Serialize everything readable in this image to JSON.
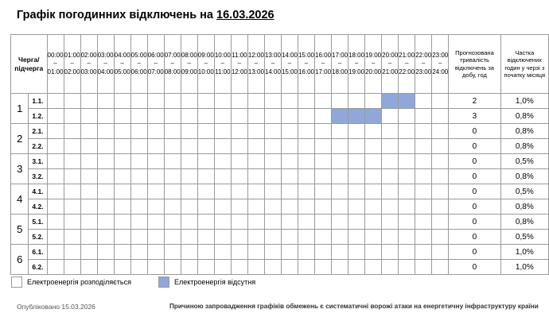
{
  "title_prefix": "Графік погодинних відключень на",
  "title_date": "16.03.2026",
  "header": {
    "queue_label": "Черга/ підчерга",
    "hours": [
      "00:00 – 01:00",
      "01:00 – 02:00",
      "02:00 – 03:00",
      "03:00 – 04:00",
      "04:00 – 05:00",
      "05:00 – 06:00",
      "06:00 – 07:00",
      "07:00 – 08:00",
      "08:00 – 09:00",
      "09:00 – 10:00",
      "10:00 – 11:00",
      "11:00 – 12:00",
      "12:00 – 13:00",
      "13:00 – 14:00",
      "14:00 – 15:00",
      "15:00 – 16:00",
      "16:00 – 17:00",
      "17:00 – 18:00",
      "18:00 – 19:00",
      "19:00 – 20:00",
      "20:00 – 21:00",
      "21:00 – 22:00",
      "22:00 – 23:00",
      "23:00 – 24:00"
    ],
    "duration_label": "Прогнозована тривалість відключень за добу, год",
    "share_label": "Частка відключених годин у черзі з початку місяця"
  },
  "queues": [
    {
      "label": "1",
      "subqueues": [
        {
          "label": "1.1.",
          "duration": "2",
          "share": "1,0%",
          "off_hours": [
            20,
            21
          ]
        },
        {
          "label": "1.2.",
          "duration": "3",
          "share": "0,8%",
          "off_hours": [
            17,
            18,
            19
          ]
        }
      ]
    },
    {
      "label": "2",
      "subqueues": [
        {
          "label": "2.1.",
          "duration": "0",
          "share": "0,8%",
          "off_hours": []
        },
        {
          "label": "2.2.",
          "duration": "0",
          "share": "0,8%",
          "off_hours": []
        }
      ]
    },
    {
      "label": "3",
      "subqueues": [
        {
          "label": "3.1.",
          "duration": "0",
          "share": "0,5%",
          "off_hours": []
        },
        {
          "label": "3.2.",
          "duration": "0",
          "share": "0,8%",
          "off_hours": []
        }
      ]
    },
    {
      "label": "4",
      "subqueues": [
        {
          "label": "4.1.",
          "duration": "0",
          "share": "0,5%",
          "off_hours": []
        },
        {
          "label": "4.2.",
          "duration": "0",
          "share": "0,8%",
          "off_hours": []
        }
      ]
    },
    {
      "label": "5",
      "subqueues": [
        {
          "label": "5.1.",
          "duration": "0",
          "share": "0,8%",
          "off_hours": []
        },
        {
          "label": "5.2.",
          "duration": "0",
          "share": "0,5%",
          "off_hours": []
        }
      ]
    },
    {
      "label": "6",
      "subqueues": [
        {
          "label": "6.1.",
          "duration": "0",
          "share": "1,0%",
          "off_hours": []
        },
        {
          "label": "6.2.",
          "duration": "0",
          "share": "1,0%",
          "off_hours": []
        }
      ]
    }
  ],
  "legend": {
    "on_label": "Електроенергія розподіляється",
    "off_label": "Електроенергія відсутня",
    "on_color": "#ffffff",
    "off_color": "#8fa8d9"
  },
  "footer": {
    "published": "Опубліковано 15.03.2026",
    "reason": "Причиною запровадження графіків обмежень є систематичні ворожі атаки на енергетичну інфраструктуру країни"
  }
}
